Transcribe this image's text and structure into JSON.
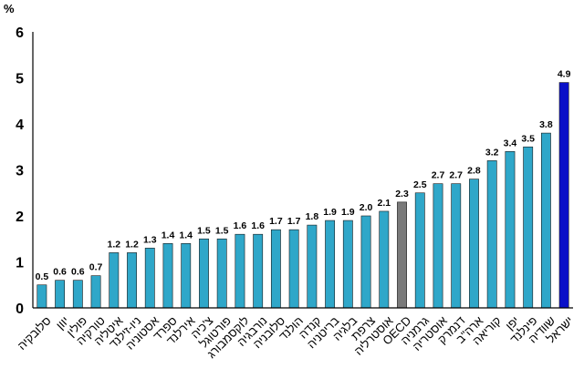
{
  "colors": {
    "default": "#2fa7c9",
    "highlight": "#7a7a7a",
    "israel": "#0a10c8"
  },
  "chart_data": {
    "type": "bar",
    "unit_label": "%",
    "ylim": [
      0,
      6
    ],
    "yticks": [
      "0",
      "1",
      "2",
      "3",
      "4",
      "5",
      "6"
    ],
    "grid": false,
    "categories": [
      "סלובקיה",
      "יוון",
      "פולין",
      "טורקיה",
      "איטליה",
      "ניו-זילנד",
      "אסטוניה",
      "ספרד",
      "אירלנד",
      "צ'כיה",
      "פורטוגל",
      "לוקסמבורג",
      "נורבגיה",
      "סלובניה",
      "הולנד",
      "קנדה",
      "בריטניה",
      "בלגיה",
      "צרפת",
      "אוסטרליה",
      "OECD",
      "גרמניה",
      "אוסטריה",
      "דנמרק",
      "ארה\"ב",
      "קוריאה",
      "יפן",
      "פינלנד",
      "שוודיה",
      "ישראל"
    ],
    "values": [
      0.5,
      0.6,
      0.6,
      0.7,
      1.2,
      1.2,
      1.3,
      1.4,
      1.4,
      1.5,
      1.5,
      1.6,
      1.6,
      1.7,
      1.7,
      1.8,
      1.9,
      1.9,
      2.0,
      2.1,
      2.3,
      2.5,
      2.7,
      2.7,
      2.8,
      3.2,
      3.4,
      3.5,
      3.8,
      4.9
    ],
    "value_labels": [
      "0.5",
      "0.6",
      "0.6",
      "0.7",
      "1.2",
      "1.2",
      "1.3",
      "1.4",
      "1.4",
      "1.5",
      "1.5",
      "1.6",
      "1.6",
      "1.7",
      "1.7",
      "1.8",
      "1.9",
      "1.9",
      "2.0",
      "2.1",
      "2.3",
      "2.5",
      "2.7",
      "2.7",
      "2.8",
      "3.2",
      "3.4",
      "3.5",
      "3.8",
      "4.9"
    ],
    "highlight": {
      "OECD": "highlight",
      "ישראל": "israel"
    }
  }
}
